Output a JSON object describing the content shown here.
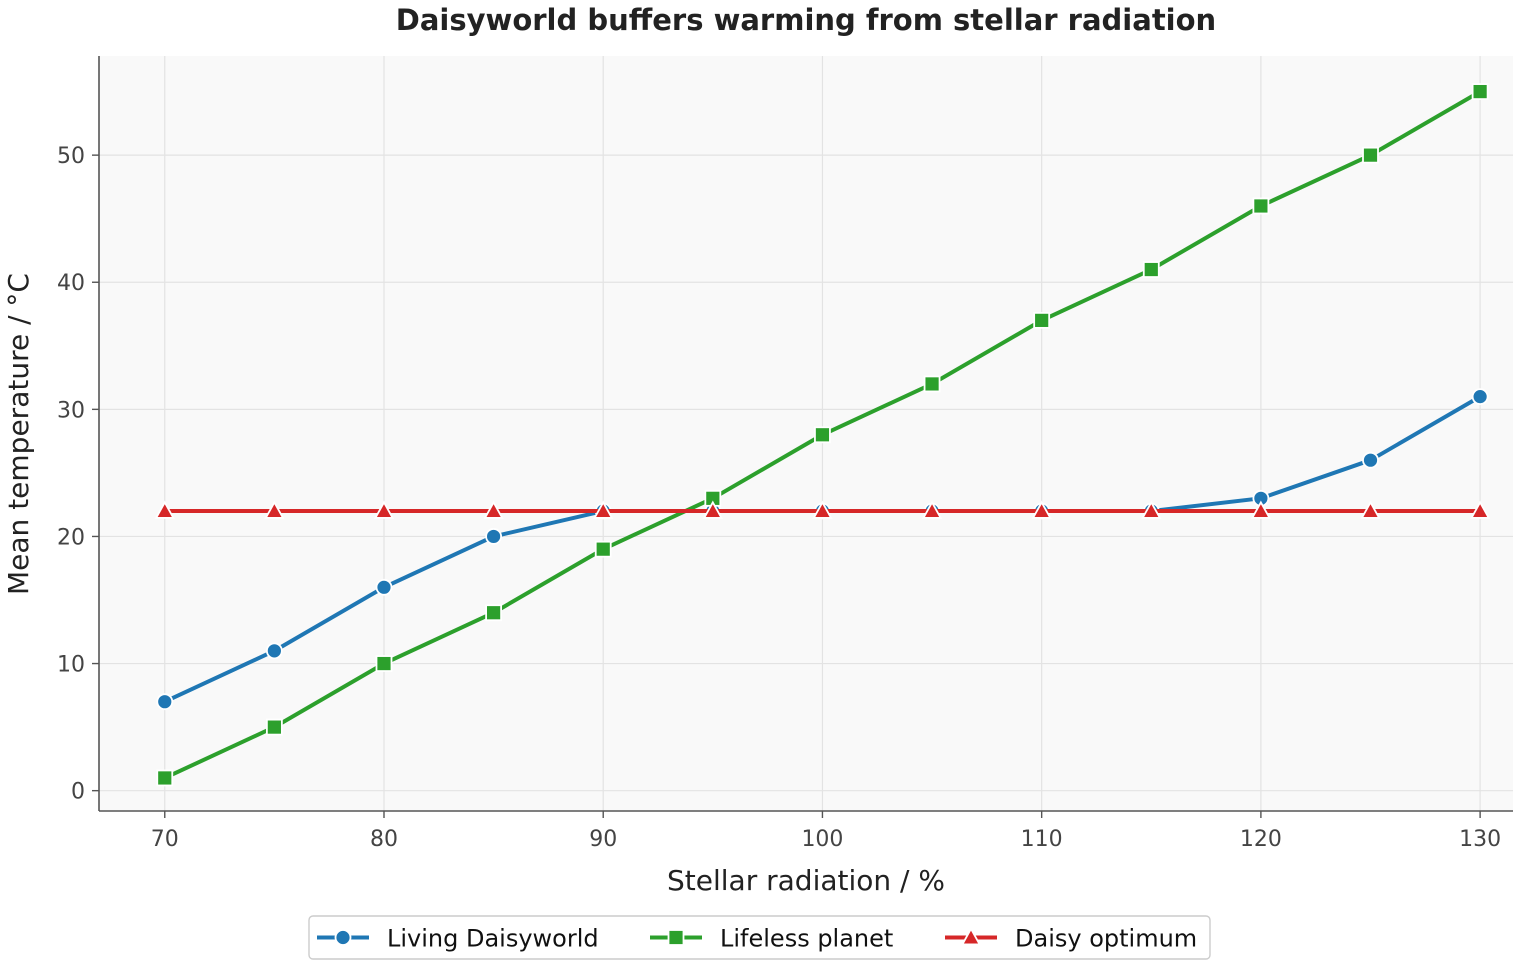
{
  "chart_data": {
    "type": "line",
    "title": "Daisyworld buffers warming from stellar radiation",
    "xlabel": "Stellar radiation / %",
    "ylabel": "Mean temperature / °C",
    "x": [
      70,
      75,
      80,
      85,
      90,
      95,
      100,
      105,
      110,
      115,
      120,
      125,
      130
    ],
    "xlim": [
      67,
      131.5
    ],
    "ylim": [
      -1.6,
      57.8
    ],
    "xticks": [
      70,
      80,
      90,
      100,
      110,
      120,
      130
    ],
    "yticks": [
      0,
      10,
      20,
      30,
      40,
      50
    ],
    "grid": true,
    "legend_position": "bottom-center",
    "series": [
      {
        "name": "Living Daisyworld",
        "color": "#1f77b4",
        "marker": "circle",
        "values": [
          7,
          11,
          16,
          20,
          22,
          22,
          22,
          22,
          22,
          22,
          23,
          26,
          31
        ]
      },
      {
        "name": "Lifeless planet",
        "color": "#2ca02c",
        "marker": "square",
        "values": [
          1,
          5,
          10,
          14,
          19,
          23,
          28,
          32,
          37,
          41,
          46,
          50,
          55
        ]
      },
      {
        "name": "Daisy optimum",
        "color": "#d62728",
        "marker": "triangle",
        "values": [
          22,
          22,
          22,
          22,
          22,
          22,
          22,
          22,
          22,
          22,
          22,
          22,
          22
        ]
      }
    ]
  }
}
